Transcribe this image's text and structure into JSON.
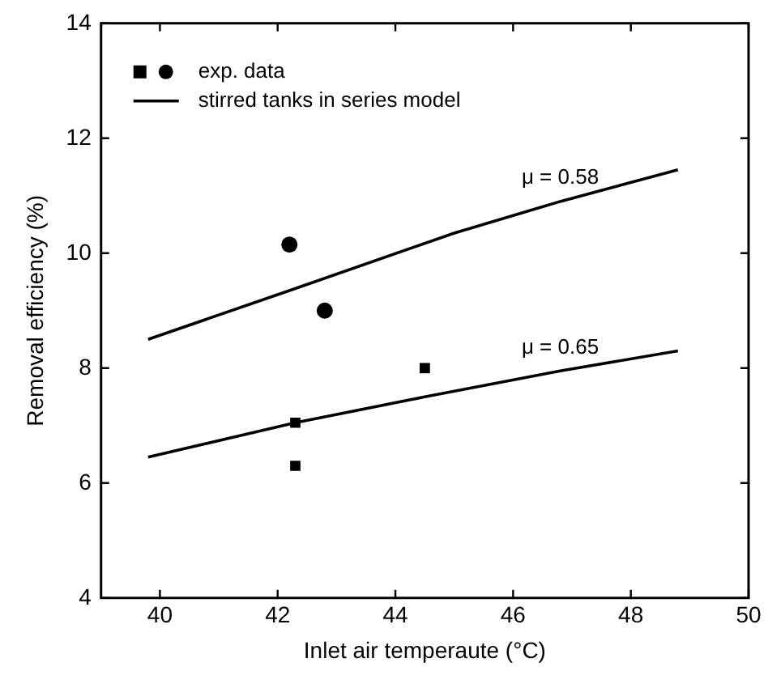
{
  "chart_data": {
    "type": "scatter",
    "xlabel": "Inlet air temperaute (°C)",
    "ylabel": "Removal efficiency (%)",
    "xlim": [
      39,
      50
    ],
    "xticks": [
      40,
      42,
      44,
      46,
      48,
      50
    ],
    "ylim": [
      4,
      14
    ],
    "yticks": [
      4,
      6,
      8,
      10,
      12,
      14
    ],
    "grid": false,
    "legend": "top left",
    "series": [
      {
        "name": "exp. data",
        "marker": "circle",
        "color": "#000000",
        "x": [
          42.2,
          42.8
        ],
        "values": [
          10.15,
          9.0
        ]
      },
      {
        "marker": "square",
        "color": "#000000",
        "x": [
          42.3,
          42.3,
          44.5
        ],
        "values": [
          7.05,
          6.3,
          8.0
        ]
      },
      {
        "name": "stirred tanks in series model",
        "type": "line",
        "marker": "none",
        "line_style": "solid",
        "color": "#000000",
        "x": [
          39.8,
          42.2,
          45,
          46.8,
          48.8
        ],
        "values": [
          8.5,
          9.35,
          10.35,
          10.9,
          11.45
        ]
      },
      {
        "type": "line",
        "marker": "none",
        "line_style": "solid",
        "color": "#000000",
        "x": [
          39.8,
          42.3,
          44.5,
          46.8,
          48.8
        ],
        "values": [
          6.45,
          7.05,
          7.5,
          7.95,
          8.3
        ]
      }
    ],
    "annotations": [
      {
        "text": "μ = 0.58",
        "x": 46.8,
        "y": 10.9
      },
      {
        "text": "μ = 0.65",
        "x": 46.8,
        "y": 7.95
      }
    ]
  }
}
